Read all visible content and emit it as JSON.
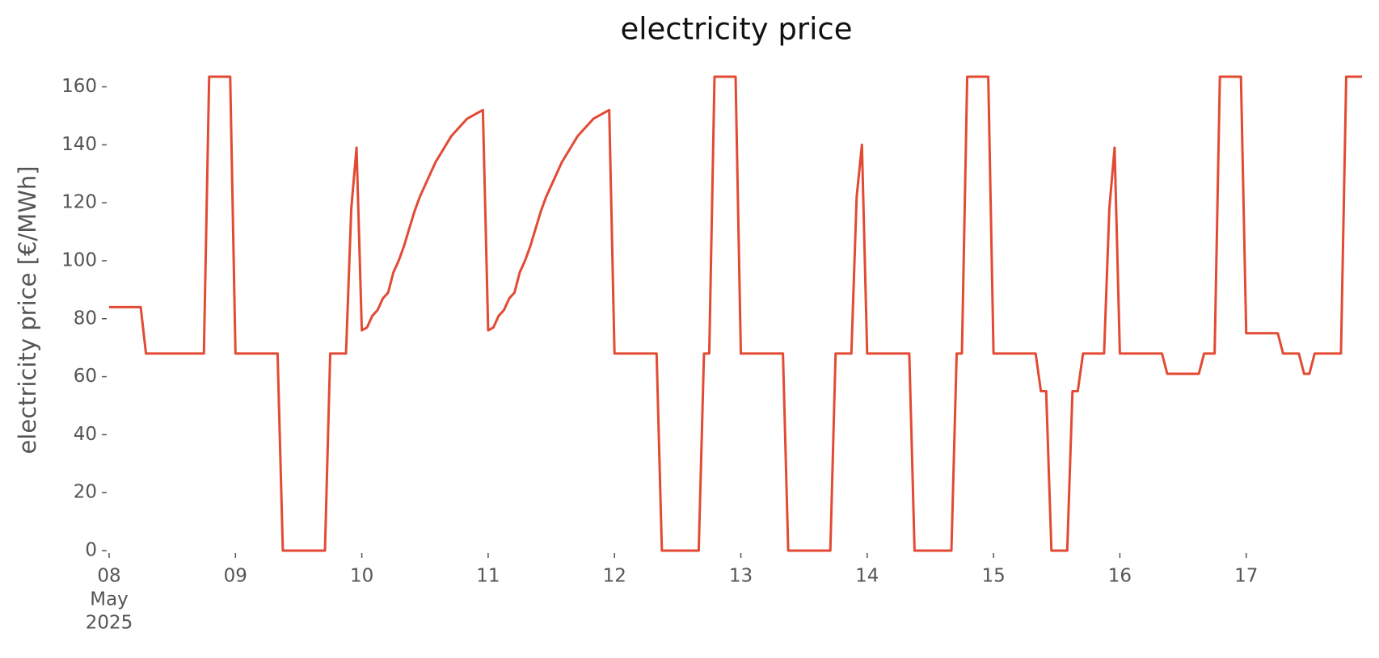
{
  "chart_data": {
    "type": "line",
    "title": "electricity price",
    "y_label": "electricity price [€/MWh]",
    "x_sublabel": [
      "May",
      "2025"
    ],
    "x": [
      0,
      6,
      7,
      18,
      19,
      23,
      24,
      32,
      33,
      41,
      42,
      45,
      46,
      47,
      48,
      49,
      50,
      51,
      52,
      53,
      54,
      55,
      56,
      57,
      58,
      59,
      60,
      61,
      62,
      63,
      64,
      65,
      66,
      67,
      68,
      69,
      70,
      71,
      72,
      73,
      74,
      75,
      76,
      77,
      78,
      79,
      80,
      81,
      82,
      83,
      84,
      85,
      86,
      87,
      88,
      89,
      90,
      91,
      92,
      93,
      94,
      95,
      96,
      104,
      105,
      112,
      113,
      114,
      115,
      119,
      120,
      128,
      129,
      137,
      138,
      141,
      142,
      143,
      144,
      152,
      153,
      160,
      161,
      162,
      163,
      167,
      168,
      176,
      177,
      178,
      179,
      182,
      183,
      184,
      185,
      189,
      190,
      191,
      192,
      200,
      201,
      207,
      208,
      210,
      211,
      215,
      216,
      222,
      223,
      226,
      227,
      228,
      229,
      234,
      235,
      238
    ],
    "series": [
      {
        "name": "electricity price",
        "color": "#E24A33",
        "values": [
          84,
          84,
          68,
          68,
          163.5,
          163.5,
          68,
          68,
          0,
          0,
          68,
          68,
          118,
          139,
          76,
          77,
          81,
          83,
          87,
          89,
          96,
          100,
          105,
          111,
          117,
          122,
          126,
          130,
          134,
          137,
          140,
          143,
          145,
          147,
          149,
          150,
          151,
          152,
          76,
          77,
          81,
          83,
          87,
          89,
          96,
          100,
          105,
          111,
          117,
          122,
          126,
          130,
          134,
          137,
          140,
          143,
          145,
          147,
          149,
          150,
          151,
          152,
          68,
          68,
          0,
          0,
          68,
          68,
          163.5,
          163.5,
          68,
          68,
          0,
          0,
          68,
          68,
          122,
          140,
          68,
          68,
          0,
          0,
          68,
          68,
          163.5,
          163.5,
          68,
          68,
          55,
          55,
          0,
          0,
          55,
          55,
          68,
          68,
          118,
          139,
          68,
          68,
          61,
          61,
          68,
          68,
          163.5,
          163.5,
          75,
          75,
          68,
          68,
          61,
          61,
          68,
          68,
          163.5,
          163.5
        ]
      }
    ],
    "xlim": [
      0,
      238
    ],
    "xticks": [
      {
        "value": 0,
        "label": "08"
      },
      {
        "value": 24,
        "label": "09"
      },
      {
        "value": 48,
        "label": "10"
      },
      {
        "value": 72,
        "label": "11"
      },
      {
        "value": 96,
        "label": "12"
      },
      {
        "value": 120,
        "label": "13"
      },
      {
        "value": 144,
        "label": "14"
      },
      {
        "value": 168,
        "label": "15"
      },
      {
        "value": 192,
        "label": "16"
      },
      {
        "value": 216,
        "label": "17"
      }
    ],
    "ylim": [
      0,
      166
    ],
    "yticks": [
      0,
      20,
      40,
      60,
      80,
      100,
      120,
      140,
      160
    ]
  }
}
